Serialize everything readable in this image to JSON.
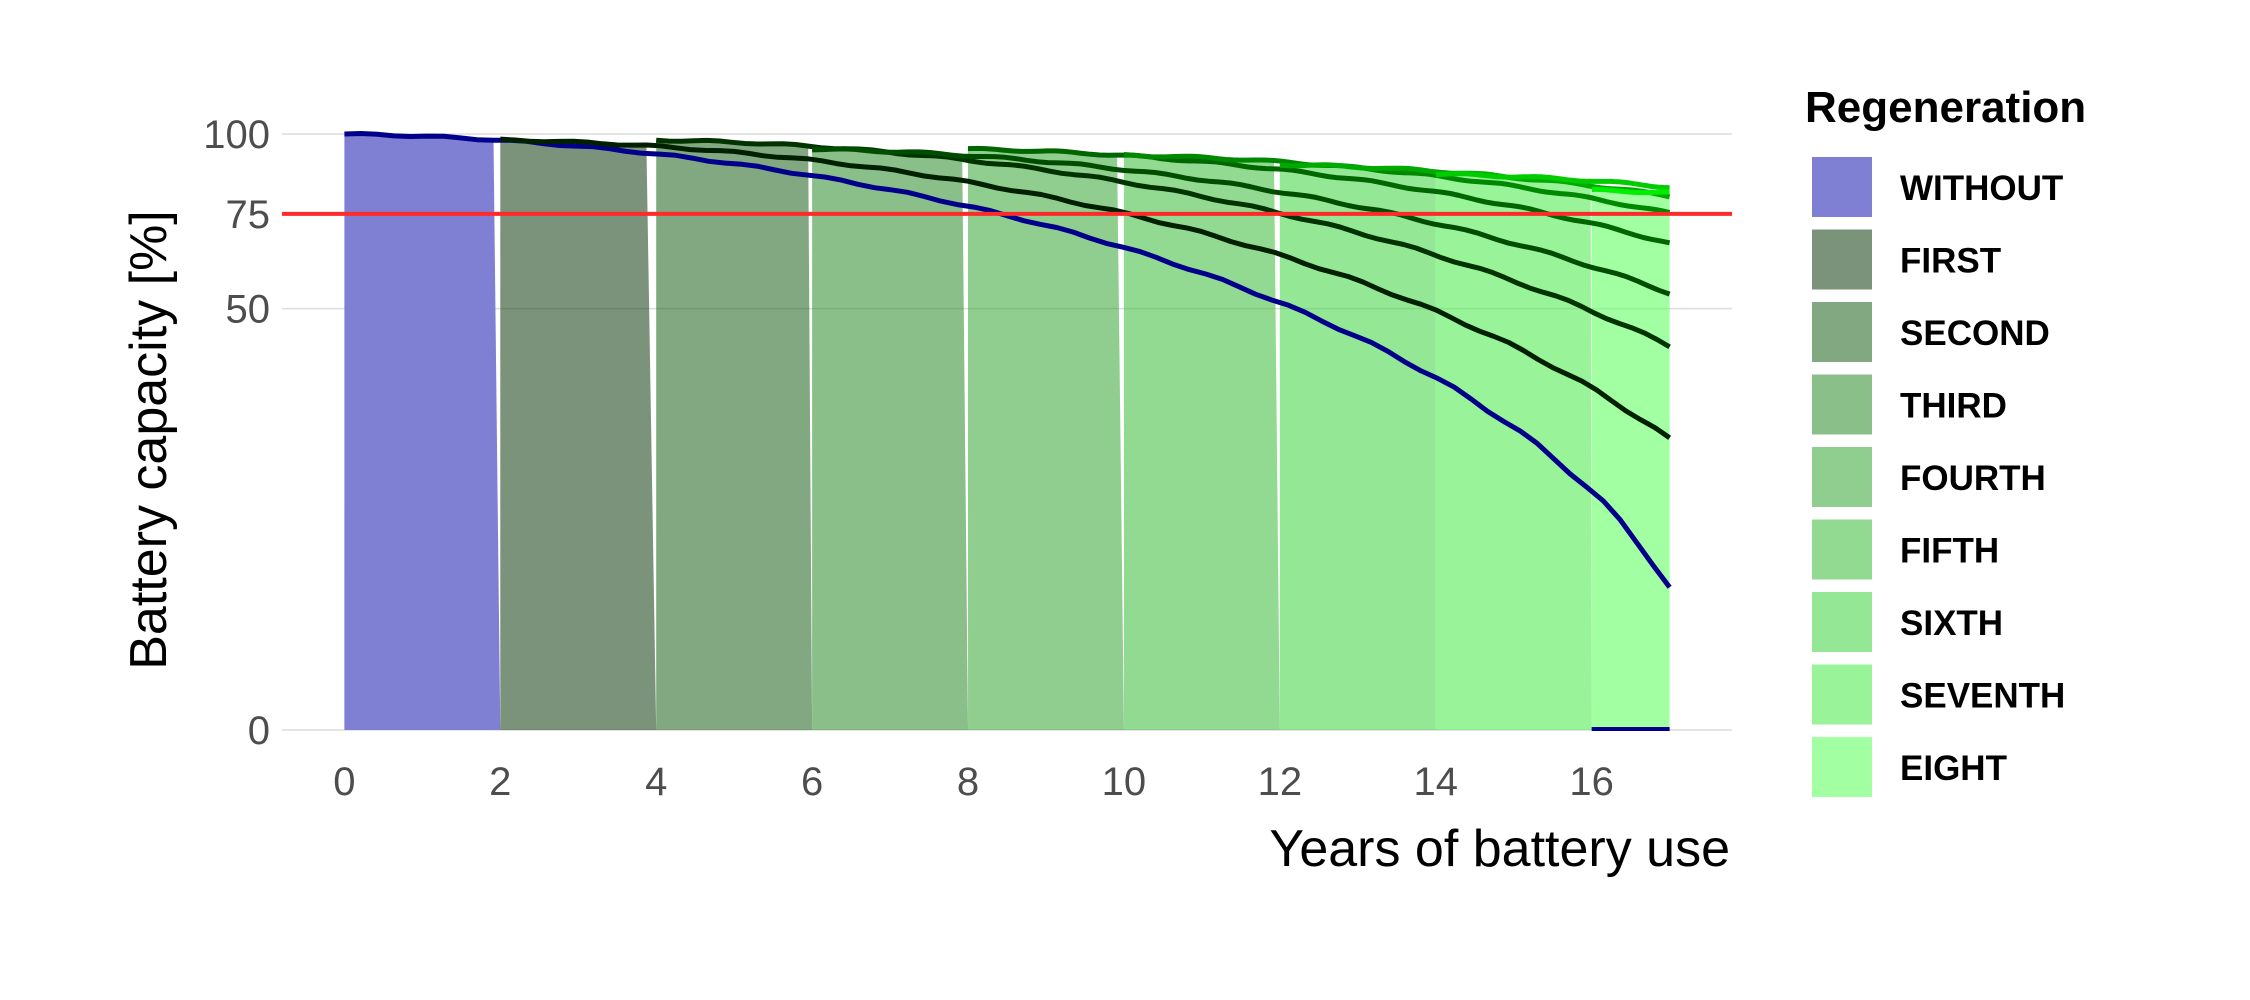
{
  "chart_data": {
    "type": "area",
    "xlabel": "Years of battery use",
    "ylabel": "Battery capacity [%]",
    "xlim": [
      -0.8,
      17.8
    ],
    "ylim": [
      0,
      100
    ],
    "x_ticks": [
      0,
      2,
      4,
      6,
      8,
      10,
      12,
      14,
      16
    ],
    "y_ticks": [
      0,
      50,
      75,
      100
    ],
    "y_scale": "sqrt",
    "grid": "horizontal",
    "threshold": {
      "y": 75,
      "color": "#ff2a2a"
    },
    "legend": {
      "title": "Regeneration",
      "position": "right"
    },
    "x_end": 17,
    "series": [
      {
        "name": "WITHOUT",
        "start": 0,
        "peak": 100,
        "fill": "#7f7fd4",
        "fill_opacity": 1.0,
        "line": "#00008b"
      },
      {
        "name": "FIRST",
        "start": 2,
        "peak": 98,
        "fill": "#0d3a0d",
        "fill_opacity": 0.55,
        "line": "#002000"
      },
      {
        "name": "SECOND",
        "start": 4,
        "peak": 98,
        "fill": "#1a601a",
        "fill_opacity": 0.55,
        "line": "#003300"
      },
      {
        "name": "THIRD",
        "start": 6,
        "peak": 95,
        "fill": "#2a8a2a",
        "fill_opacity": 0.55,
        "line": "#004d00"
      },
      {
        "name": "FOURTH",
        "start": 8,
        "peak": 95,
        "fill": "#34a534",
        "fill_opacity": 0.55,
        "line": "#006600"
      },
      {
        "name": "FIFTH",
        "start": 10,
        "peak": 93,
        "fill": "#38bb38",
        "fill_opacity": 0.55,
        "line": "#008800"
      },
      {
        "name": "SIXTH",
        "start": 12,
        "peak": 90,
        "fill": "#3dd33d",
        "fill_opacity": 0.55,
        "line": "#00aa00"
      },
      {
        "name": "SEVENTH",
        "start": 14,
        "peak": 87,
        "fill": "#45ea45",
        "fill_opacity": 0.55,
        "line": "#00cc00"
      },
      {
        "name": "EIGHT",
        "start": 16,
        "peak": 82,
        "fill": "#55ff55",
        "fill_opacity": 0.55,
        "line": "#00ee00"
      }
    ]
  }
}
